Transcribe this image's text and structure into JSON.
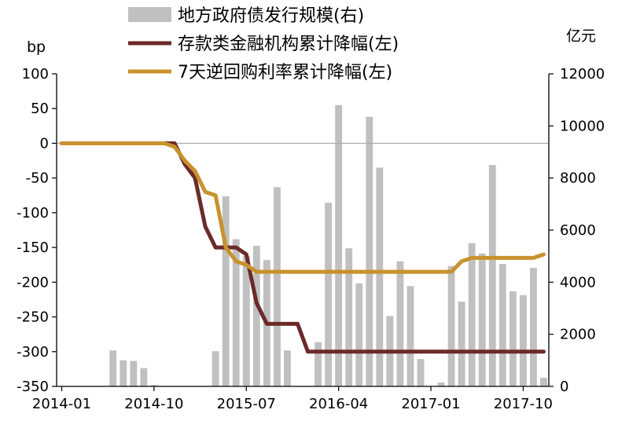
{
  "chart_data": {
    "type": "bar+line",
    "title": "",
    "left_axis": {
      "unit": "bp",
      "ylim": [
        -350,
        100
      ],
      "ticks": [
        100,
        50,
        0,
        -50,
        -100,
        -150,
        -200,
        -250,
        -300,
        -350
      ]
    },
    "right_axis": {
      "unit": "亿元",
      "ylim": [
        0,
        12000
      ],
      "ticks": [
        12000,
        10000,
        8000,
        6000,
        4000,
        2000,
        0
      ]
    },
    "x": [
      "2014-01",
      "2014-02",
      "2014-03",
      "2014-04",
      "2014-05",
      "2014-06",
      "2014-07",
      "2014-08",
      "2014-09",
      "2014-10",
      "2014-11",
      "2014-12",
      "2015-01",
      "2015-02",
      "2015-03",
      "2015-04",
      "2015-05",
      "2015-06",
      "2015-07",
      "2015-08",
      "2015-09",
      "2015-10",
      "2015-11",
      "2015-12",
      "2016-01",
      "2016-02",
      "2016-03",
      "2016-04",
      "2016-05",
      "2016-06",
      "2016-07",
      "2016-08",
      "2016-09",
      "2016-10",
      "2016-11",
      "2016-12",
      "2017-01",
      "2017-02",
      "2017-03",
      "2017-04",
      "2017-05",
      "2017-06",
      "2017-07",
      "2017-08",
      "2017-09",
      "2017-10",
      "2017-11",
      "2017-12"
    ],
    "x_tick_labels": [
      "2014-01",
      "2014-10",
      "2015-07",
      "2016-04",
      "2017-01",
      "2017-10"
    ],
    "grid": false,
    "legend_position": "top",
    "series": [
      {
        "name": "地方政府债发行规模(右)",
        "type": "bar",
        "axis": "right",
        "color": "#c0c0c0",
        "values": [
          0,
          0,
          0,
          0,
          0,
          1380,
          1000,
          980,
          700,
          50,
          0,
          0,
          0,
          0,
          0,
          1350,
          7300,
          5650,
          5000,
          5400,
          4850,
          7650,
          1380,
          0,
          0,
          1700,
          7050,
          10800,
          5300,
          3950,
          10350,
          8400,
          2700,
          4800,
          3850,
          1050,
          0,
          150,
          4620,
          3250,
          5500,
          5100,
          8500,
          4700,
          3650,
          3500,
          4550,
          330
        ]
      },
      {
        "name": "存款类金融机构累计降幅(左)",
        "type": "line",
        "axis": "left",
        "color": "#6b2a28",
        "values": [
          0,
          0,
          0,
          0,
          0,
          0,
          0,
          0,
          0,
          0,
          0,
          0,
          -30,
          -50,
          -120,
          -150,
          -150,
          -150,
          -160,
          -230,
          -260,
          -260,
          -260,
          -260,
          -300,
          -300,
          -300,
          -300,
          -300,
          -300,
          -300,
          -300,
          -300,
          -300,
          -300,
          -300,
          -300,
          -300,
          -300,
          -300,
          -300,
          -300,
          -300,
          -300,
          -300,
          -300,
          -300,
          -300
        ]
      },
      {
        "name": "7天逆回购利率累计降幅(左)",
        "type": "line",
        "axis": "left",
        "color": "#c8922e",
        "values": [
          0,
          0,
          0,
          0,
          0,
          0,
          0,
          0,
          0,
          0,
          0,
          -5,
          -25,
          -40,
          -70,
          -75,
          -150,
          -170,
          -175,
          -185,
          -185,
          -185,
          -185,
          -185,
          -185,
          -185,
          -185,
          -185,
          -185,
          -185,
          -185,
          -185,
          -185,
          -185,
          -185,
          -185,
          -185,
          -185,
          -185,
          -170,
          -165,
          -165,
          -165,
          -165,
          -165,
          -165,
          -165,
          -160
        ]
      }
    ]
  }
}
